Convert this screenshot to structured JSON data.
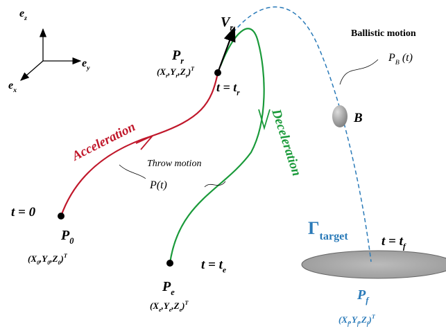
{
  "axes": {
    "ez": [
      "e",
      {
        "sub": "z"
      }
    ],
    "ey": [
      "e",
      {
        "sub": "y"
      }
    ],
    "ex": [
      "e",
      {
        "sub": "x"
      }
    ]
  },
  "release": {
    "velocity": [
      "V",
      {
        "sub": "r"
      }
    ],
    "point": [
      "P",
      {
        "sub": "r"
      }
    ],
    "coords": [
      "(X",
      {
        "sub": "r"
      },
      ",Y",
      {
        "sub": "r"
      },
      ",Z",
      {
        "sub": "r"
      },
      ")",
      {
        "sup": "T"
      }
    ],
    "time": [
      "t = t",
      {
        "sub": "r"
      }
    ]
  },
  "phases": {
    "acceleration": [
      "Acceleration"
    ],
    "deceleration": [
      "Deceleration"
    ],
    "throw_motion": [
      "Throw motion"
    ],
    "throw_func": [
      "P(t)"
    ],
    "ballistic_motion": [
      "Ballistic motion"
    ],
    "ballistic_func": [
      "P",
      {
        "sub": "B"
      },
      " (t)"
    ],
    "ball": [
      "B"
    ]
  },
  "start": {
    "time": [
      "t = 0"
    ],
    "point": [
      "P",
      {
        "sub": "0"
      }
    ],
    "coords": [
      "(X",
      {
        "sub": "0"
      },
      ",Y",
      {
        "sub": "0"
      },
      ",Z",
      {
        "sub": "0"
      },
      ")",
      {
        "sup": "T"
      }
    ]
  },
  "end": {
    "time": [
      "t = t",
      {
        "sub": "e"
      }
    ],
    "point": [
      "P",
      {
        "sub": "e"
      }
    ],
    "coords": [
      "(X",
      {
        "sub": "e"
      },
      ",Y",
      {
        "sub": "e"
      },
      ",Z",
      {
        "sub": "e"
      },
      ")",
      {
        "sup": "T"
      }
    ]
  },
  "target": {
    "gamma": [
      "Γ",
      {
        "sub": "target"
      }
    ],
    "time": [
      "t = t",
      {
        "sub": "f"
      }
    ],
    "point": [
      "P",
      {
        "sub": "f"
      }
    ],
    "coords": [
      "(X",
      {
        "sub": "f"
      },
      ",Y",
      {
        "sub": "f"
      },
      ",Z",
      {
        "sub": "f"
      },
      ")",
      {
        "sup": "T"
      }
    ]
  }
}
